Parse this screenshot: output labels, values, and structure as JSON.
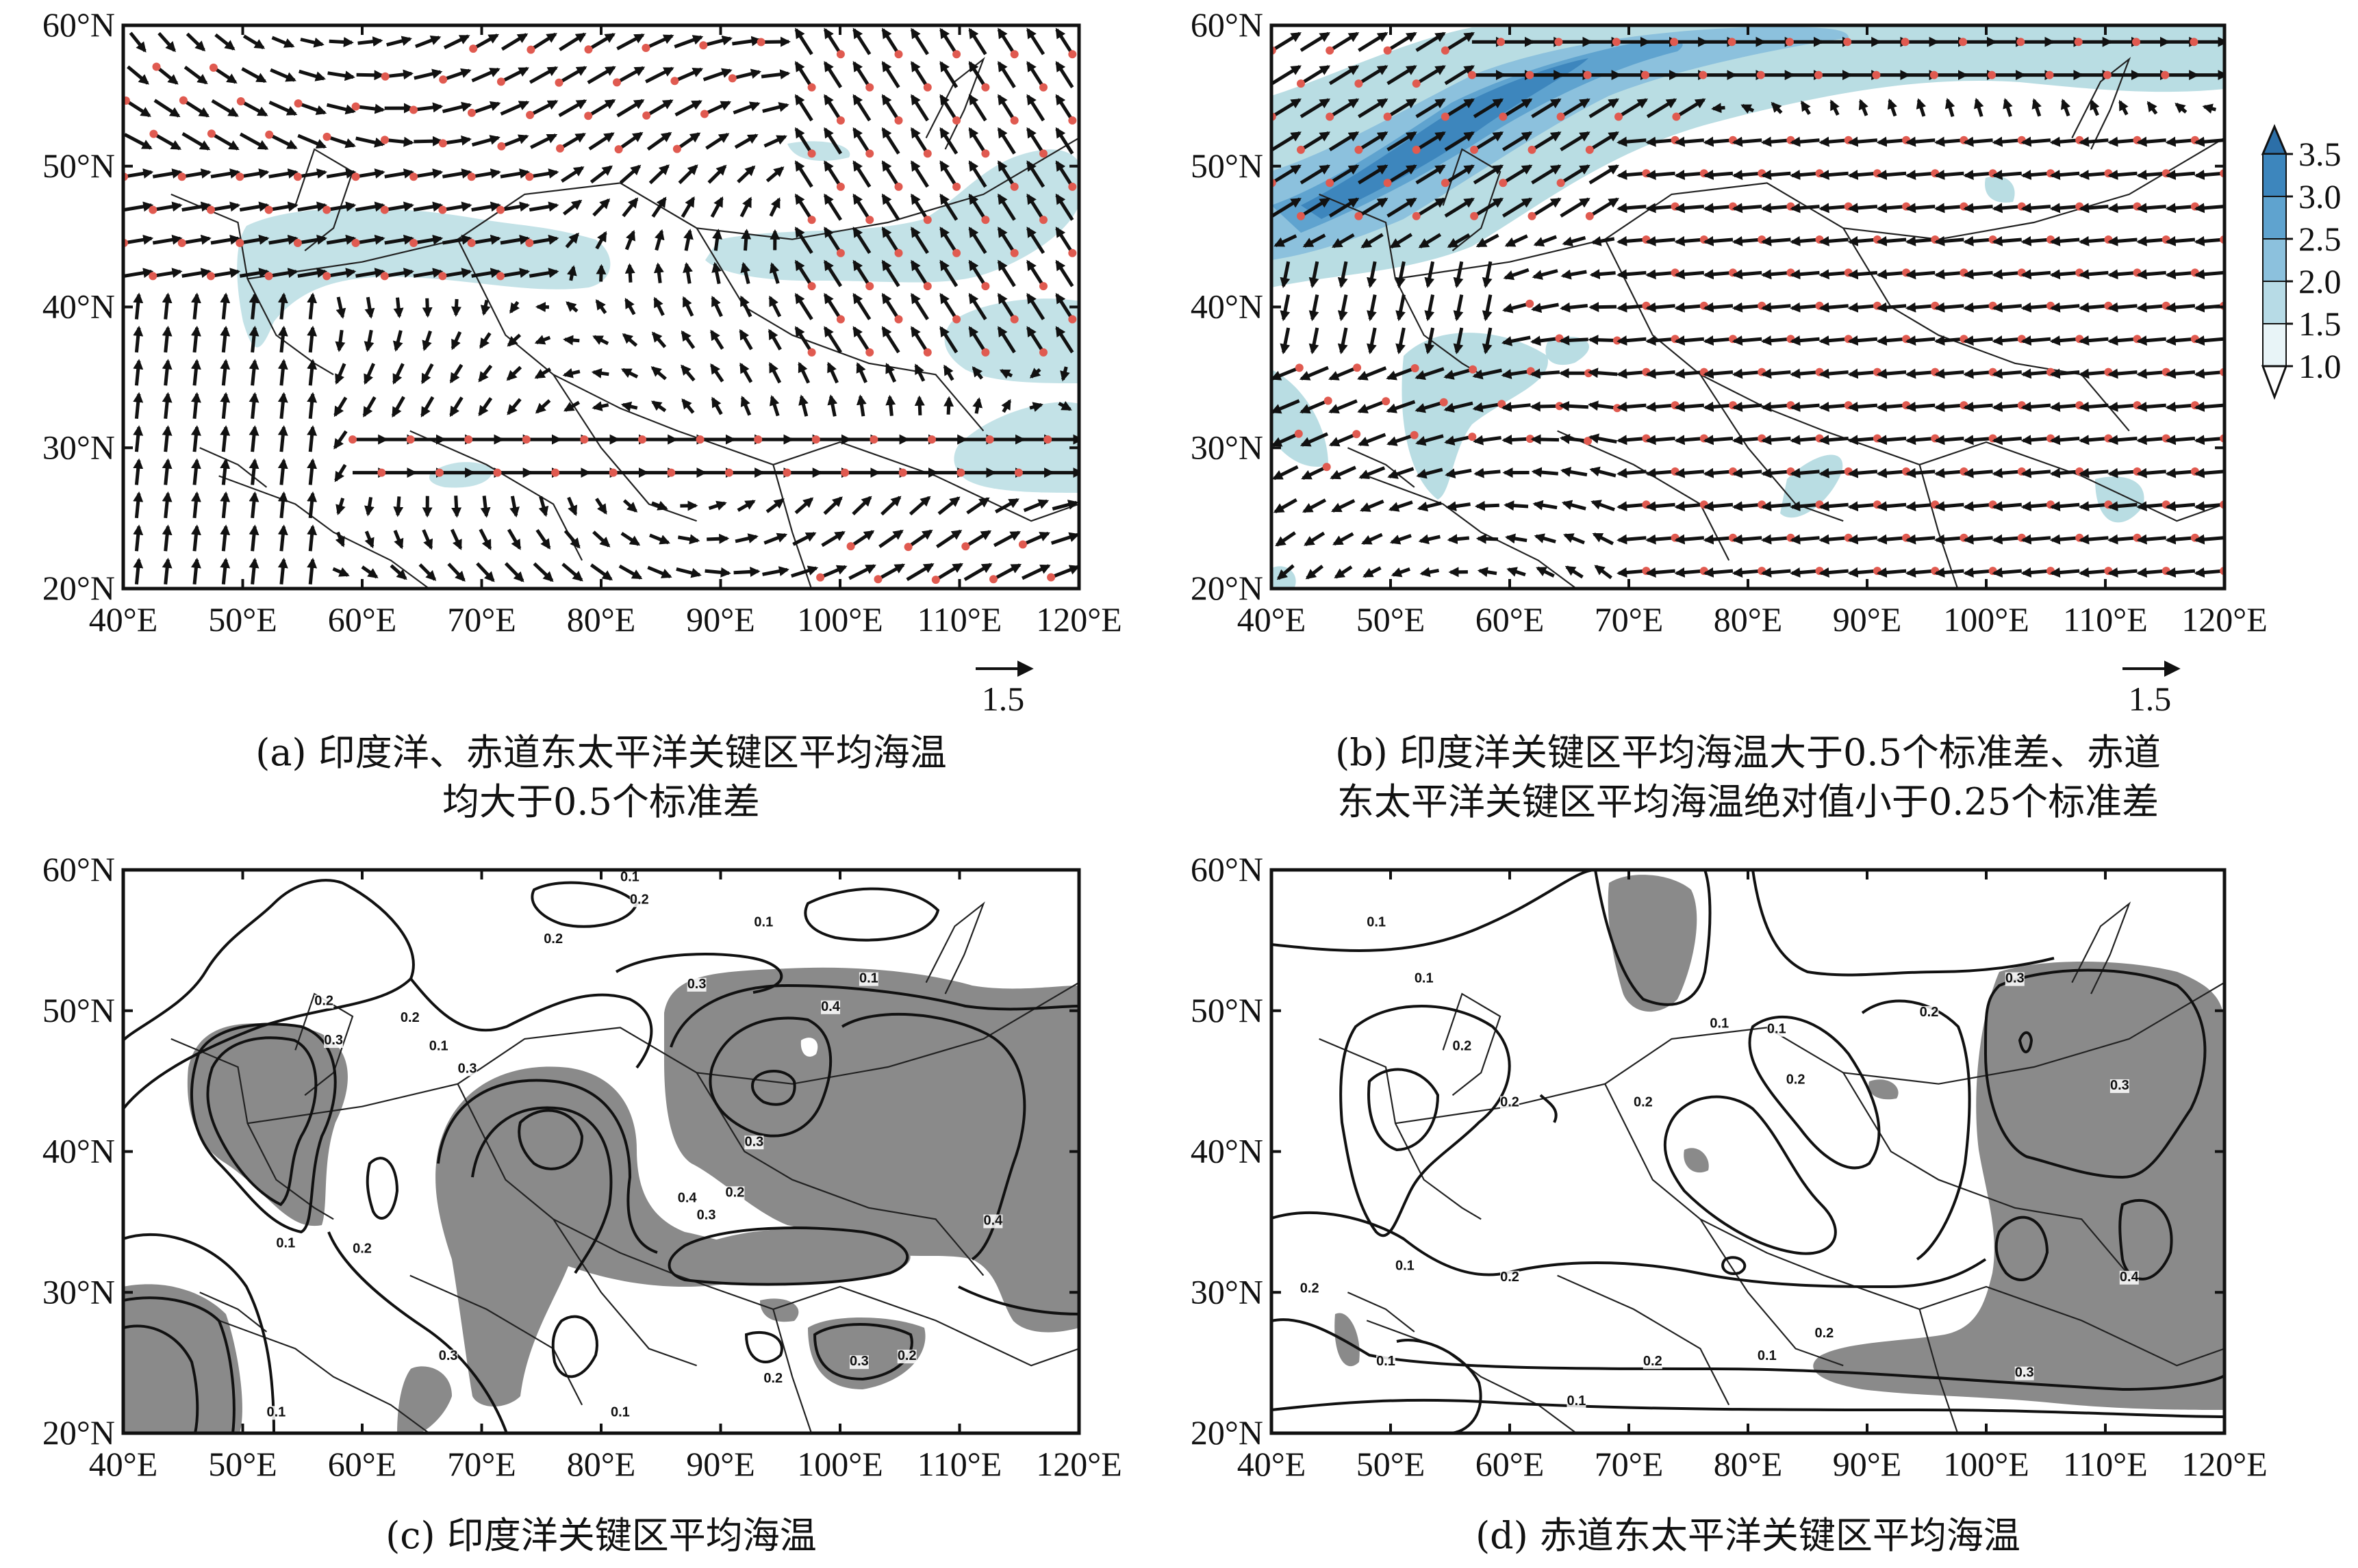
{
  "figure": {
    "lat_labels": [
      "60°N",
      "50°N",
      "40°N",
      "30°N",
      "20°N"
    ],
    "lon_labels": [
      "40°E",
      "50°E",
      "60°E",
      "70°E",
      "80°E",
      "90°E",
      "100°E",
      "110°E",
      "120°E"
    ],
    "reference_vector": "1.5",
    "colorbar": {
      "ticks": [
        "3.5",
        "3.0",
        "2.5",
        "2.0",
        "1.5",
        "1.0"
      ],
      "colors": [
        "#2c6fa8",
        "#3d86bd",
        "#5fa3cf",
        "#8cc1dd",
        "#b7dbe6",
        "#e8f4f7"
      ]
    }
  },
  "panels": {
    "a": {
      "caption_line1": "(a) 印度洋、赤道东太平洋关键区平均海温",
      "caption_line2": "均大于0.5个标准差"
    },
    "b": {
      "caption_line1": "(b) 印度洋关键区平均海温大于0.5个标准差、赤道",
      "caption_line2": "东太平洋关键区平均海温绝对值小于0.25个标准差"
    },
    "c": {
      "caption_line1": "(c) 印度洋关键区平均海温",
      "contour_labels": [
        "0.1",
        "0.1",
        "0.2",
        "0.2",
        "0.2",
        "0.1",
        "0.3",
        "0.3",
        "0.3",
        "0.4",
        "0.4",
        "0.3",
        "0.2",
        "0.1",
        "0.2",
        "0.3",
        "0.3",
        "0.1",
        "0.2",
        "0.3",
        "0.1",
        "0.2",
        "0.1",
        "0.2",
        "0.4"
      ]
    },
    "d": {
      "caption_line1": "(d) 赤道东太平洋关键区平均海温",
      "contour_labels": [
        "0.1",
        "0.1",
        "0.2",
        "0.2",
        "0.1",
        "0.2",
        "0.2",
        "0.3",
        "0.3",
        "0.4",
        "0.1",
        "0.2",
        "0.1",
        "0.2",
        "0.2",
        "0.1",
        "0.3",
        "0.2",
        "0.1",
        "0.2",
        "0.1"
      ]
    }
  }
}
